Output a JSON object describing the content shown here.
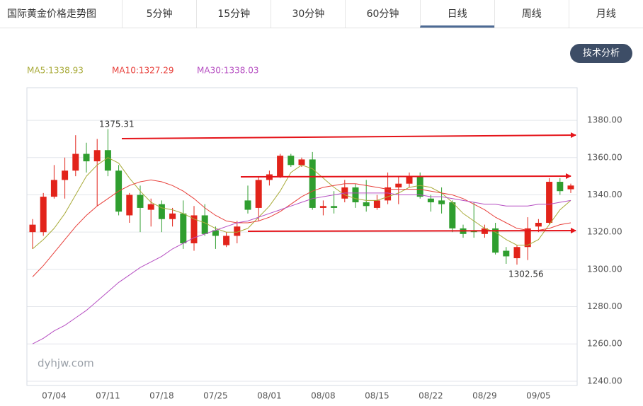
{
  "title": "国际黄金价格走势图",
  "tabs": [
    {
      "label": "5分钟",
      "active": false
    },
    {
      "label": "15分钟",
      "active": false
    },
    {
      "label": "30分钟",
      "active": false
    },
    {
      "label": "60分钟",
      "active": false
    },
    {
      "label": "日线",
      "active": true
    },
    {
      "label": "周线",
      "active": false
    },
    {
      "label": "月线",
      "active": false
    }
  ],
  "button": "技术分析",
  "chart_data": {
    "type": "candlestick",
    "watermark": "dyhjw.com",
    "annotations": [
      "1375.31",
      "1302.56"
    ],
    "up_color": "#e2231a",
    "down_color": "#2f9e2f",
    "categories": [
      null,
      null,
      "07/04",
      null,
      null,
      null,
      null,
      "07/11",
      null,
      null,
      null,
      null,
      "07/18",
      null,
      null,
      null,
      null,
      "07/25",
      null,
      null,
      null,
      null,
      "08/01",
      null,
      null,
      null,
      null,
      "08/08",
      null,
      null,
      null,
      null,
      "08/15",
      null,
      null,
      null,
      null,
      "08/22",
      null,
      null,
      null,
      null,
      "08/29",
      null,
      null,
      null,
      null,
      "09/05",
      null,
      null,
      null
    ],
    "open": [
      1320,
      1320,
      1339,
      1348,
      1353,
      1362,
      1358,
      1364,
      1353,
      1329,
      1340,
      1332,
      1335,
      1327,
      1330,
      1314,
      1329,
      1321,
      1313,
      1318,
      1337,
      1333,
      1348,
      1350,
      1361,
      1356,
      1359,
      1333,
      1334,
      1338,
      1344,
      1336,
      1333,
      1337,
      1344,
      1346,
      1350,
      1338,
      1337,
      1336,
      1322,
      1321,
      1319,
      1322,
      1310,
      1306,
      1312,
      1323,
      1325,
      1347,
      1343
    ],
    "high": [
      1327,
      1341,
      1356,
      1360,
      1372,
      1368,
      1370,
      1375.31,
      1356,
      1341,
      1345,
      1338,
      1337,
      1333,
      1337,
      1334,
      1335,
      1323,
      1320,
      1326,
      1345,
      1350,
      1353,
      1362,
      1362,
      1360,
      1363,
      1337,
      1342,
      1348,
      1346,
      1348,
      1340,
      1352,
      1350,
      1352,
      1352,
      1340,
      1344,
      1337,
      1324,
      1336,
      1324,
      1325,
      1312,
      1313,
      1328,
      1327,
      1349,
      1349,
      1346
    ],
    "low": [
      1311,
      1318,
      1338,
      1338,
      1350,
      1352,
      1334,
      1350,
      1329,
      1325,
      1320,
      1323,
      1320,
      1323,
      1311,
      1310,
      1318,
      1311,
      1312,
      1314,
      1330,
      1326,
      1345,
      1349,
      1355,
      1355,
      1332,
      1329,
      1330,
      1336,
      1333,
      1331,
      1332,
      1335,
      1335,
      1344,
      1338,
      1331,
      1330,
      1320,
      1317,
      1317,
      1317,
      1308,
      1303,
      1302.56,
      1305,
      1320,
      1324,
      1340,
      1341
    ],
    "close": [
      1324,
      1339,
      1348,
      1353,
      1362,
      1358,
      1364,
      1353,
      1331,
      1340,
      1333,
      1335,
      1327,
      1330,
      1314,
      1329,
      1319,
      1318,
      1318,
      1323,
      1332,
      1348,
      1351,
      1361,
      1356,
      1359,
      1333,
      1334,
      1333,
      1344,
      1336,
      1334,
      1337,
      1344,
      1346,
      1350,
      1339,
      1336,
      1335,
      1322,
      1319,
      1320,
      1322,
      1309,
      1307,
      1312,
      1322,
      1325,
      1347,
      1342,
      1345
    ],
    "series": [
      {
        "name": "MA5:1338.93",
        "color": "#a9ab3a",
        "values": [
          1311,
          1316,
          1322,
          1330,
          1340,
          1350,
          1356,
          1360,
          1357,
          1349,
          1342,
          1336,
          1333,
          1332,
          1330,
          1327,
          1325,
          1322,
          1320,
          1320,
          1322,
          1328,
          1334,
          1342,
          1352,
          1356,
          1354,
          1349,
          1344,
          1340,
          1338,
          1337,
          1337,
          1339,
          1341,
          1344,
          1345,
          1344,
          1341,
          1336,
          1330,
          1326,
          1322,
          1320,
          1316,
          1313,
          1313,
          1316,
          1324,
          1332,
          1337
        ]
      },
      {
        "name": "MA10:1327.29",
        "color": "#e8403b",
        "values": [
          1296,
          1302,
          1309,
          1316,
          1323,
          1329,
          1334,
          1338,
          1342,
          1345,
          1347,
          1348,
          1347,
          1345,
          1342,
          1338,
          1333,
          1329,
          1326,
          1325,
          1325,
          1326,
          1328,
          1331,
          1335,
          1339,
          1342,
          1344,
          1345,
          1346,
          1346,
          1345,
          1344,
          1343,
          1343,
          1343,
          1343,
          1342,
          1341,
          1340,
          1338,
          1335,
          1332,
          1328,
          1325,
          1322,
          1321,
          1321,
          1322,
          1324,
          1325
        ]
      },
      {
        "name": "MA30:1338.03",
        "color": "#b64fc2",
        "values": [
          1260,
          1263,
          1267,
          1270,
          1274,
          1278,
          1283,
          1288,
          1293,
          1297,
          1301,
          1304,
          1307,
          1311,
          1314,
          1317,
          1319,
          1321,
          1323,
          1325,
          1326,
          1328,
          1330,
          1332,
          1334,
          1336,
          1338,
          1339,
          1340,
          1341,
          1341,
          1341,
          1341,
          1341,
          1340,
          1340,
          1340,
          1339,
          1339,
          1338,
          1337,
          1336,
          1335,
          1335,
          1334,
          1334,
          1334,
          1335,
          1335,
          1336,
          1337
        ]
      }
    ],
    "ylim": [
      1237.7,
      1397.5
    ],
    "yticks": [
      {
        "value": 1240,
        "label": "1240.00"
      },
      {
        "value": 1260,
        "label": "1260.00"
      },
      {
        "value": 1280,
        "label": "1280.00"
      },
      {
        "value": 1300,
        "label": "1300.00"
      },
      {
        "value": 1320,
        "label": "1320.00"
      },
      {
        "value": 1340,
        "label": "1340.00"
      },
      {
        "value": 1360,
        "label": "1360.00"
      },
      {
        "value": 1380,
        "label": "1380.00"
      }
    ],
    "grid": true
  }
}
